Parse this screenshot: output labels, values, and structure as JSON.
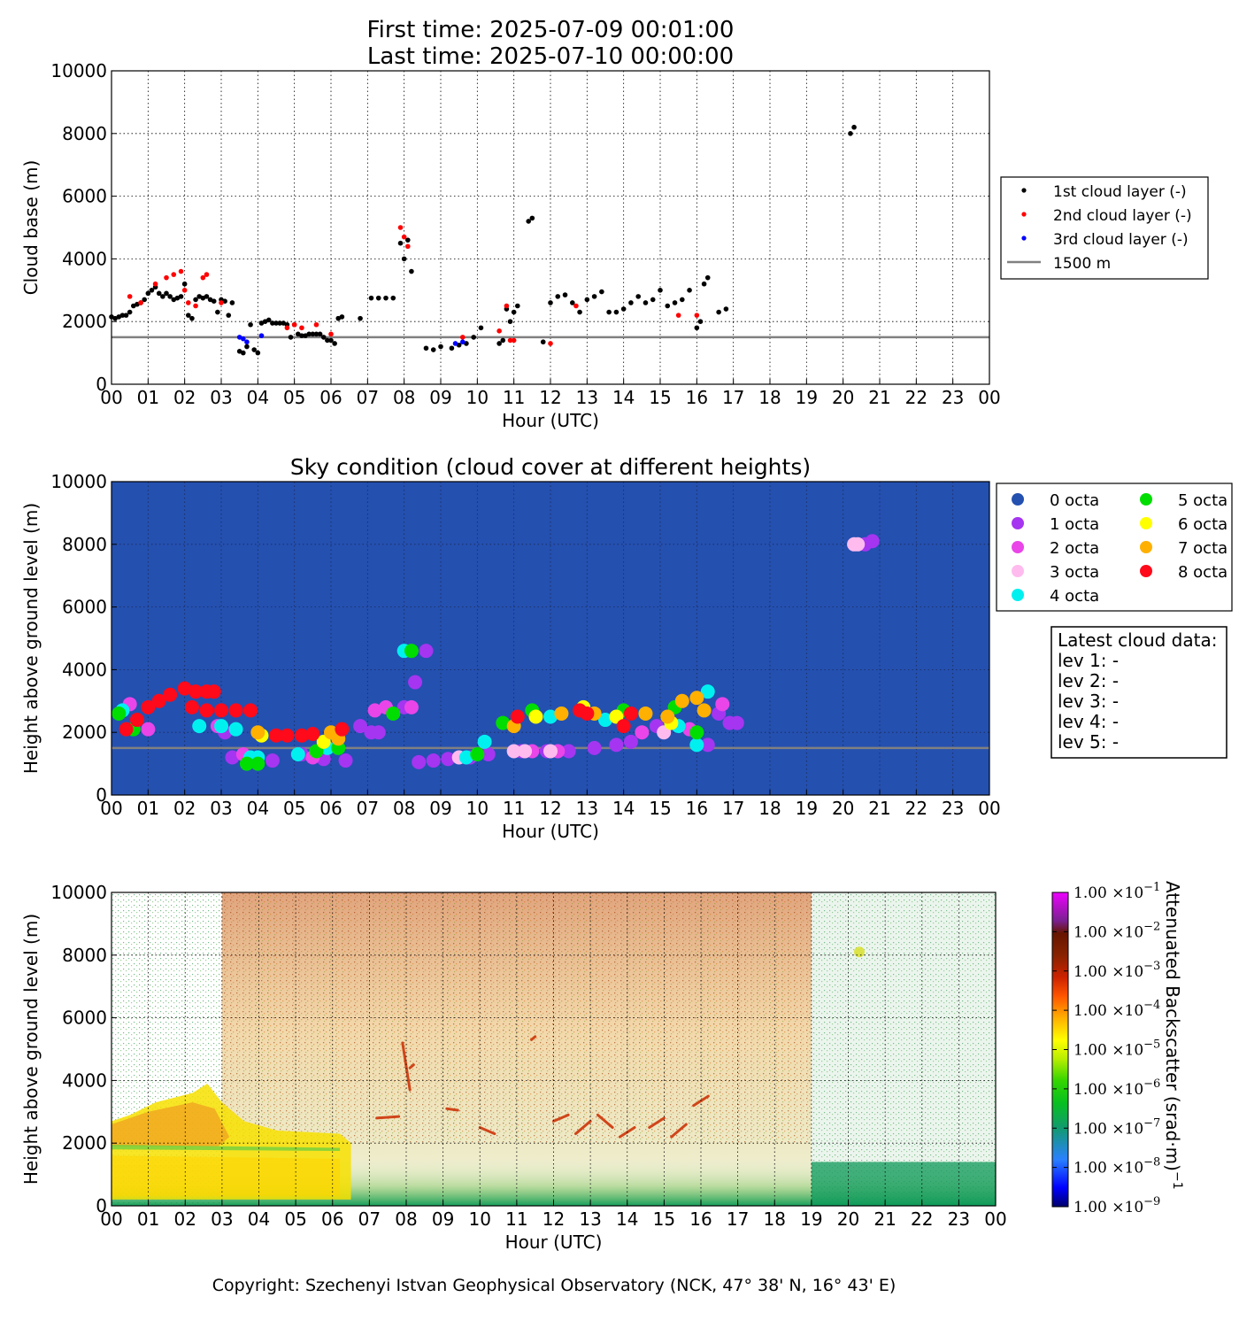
{
  "header": {
    "line1": "First time: 2025-07-09 00:01:00",
    "line2": "Last time: 2025-07-10 00:00:00"
  },
  "footer": {
    "copyright": "Copyright: Szechenyi Istvan Geophysical Observatory (NCK, 47° 38' N, 16° 43' E)"
  },
  "chart_data": [
    {
      "type": "scatter",
      "title": "",
      "xlabel": "Hour (UTC)",
      "ylabel": "Cloud base (m)",
      "xlim": [
        0,
        24
      ],
      "ylim": [
        0,
        10000
      ],
      "xticks": [
        "00",
        "01",
        "02",
        "03",
        "04",
        "05",
        "06",
        "07",
        "08",
        "09",
        "10",
        "11",
        "12",
        "13",
        "14",
        "15",
        "16",
        "17",
        "18",
        "19",
        "20",
        "21",
        "22",
        "23",
        "00"
      ],
      "yticks": [
        0,
        2000,
        4000,
        6000,
        8000,
        10000
      ],
      "grid": true,
      "legend_position": "right",
      "reference_line": {
        "label": "1500 m",
        "y": 1500,
        "color": "#808080"
      },
      "series": [
        {
          "name": "1st cloud layer (-)",
          "color": "#000000",
          "x": [
            0.0,
            0.1,
            0.2,
            0.3,
            0.4,
            0.5,
            0.6,
            0.7,
            0.8,
            0.9,
            1.0,
            1.1,
            1.2,
            1.3,
            1.4,
            1.5,
            1.6,
            1.7,
            1.8,
            1.9,
            2.0,
            2.1,
            2.2,
            2.3,
            2.4,
            2.5,
            2.6,
            2.7,
            2.8,
            2.9,
            3.0,
            3.1,
            3.2,
            3.3,
            3.5,
            3.6,
            3.7,
            3.8,
            3.9,
            4.0,
            4.1,
            4.2,
            4.3,
            4.4,
            4.5,
            4.6,
            4.7,
            4.8,
            4.9,
            5.0,
            5.1,
            5.2,
            5.3,
            5.4,
            5.5,
            5.6,
            5.7,
            5.8,
            5.9,
            6.0,
            6.1,
            6.2,
            6.3,
            6.8,
            7.1,
            7.3,
            7.5,
            7.7,
            7.9,
            8.0,
            8.1,
            8.2,
            8.6,
            8.8,
            9.0,
            9.3,
            9.5,
            9.7,
            9.9,
            10.1,
            10.6,
            10.7,
            10.8,
            10.9,
            11.0,
            11.1,
            11.4,
            11.5,
            11.8,
            12.0,
            12.2,
            12.4,
            12.6,
            12.8,
            13.0,
            13.2,
            13.4,
            13.6,
            13.8,
            14.0,
            14.2,
            14.4,
            14.6,
            14.8,
            15.0,
            15.2,
            15.4,
            15.6,
            15.8,
            16.0,
            16.1,
            16.2,
            16.3,
            16.6,
            16.8,
            20.2,
            20.3
          ],
          "y": [
            2150,
            2100,
            2150,
            2200,
            2200,
            2300,
            2500,
            2550,
            2600,
            2700,
            2900,
            3000,
            3100,
            2900,
            2800,
            2900,
            2800,
            2700,
            2750,
            2800,
            3200,
            2200,
            2100,
            2700,
            2800,
            2750,
            2800,
            2700,
            2650,
            2300,
            2700,
            2650,
            2200,
            2600,
            1050,
            1000,
            1200,
            1900,
            1100,
            1000,
            1950,
            2000,
            2050,
            1950,
            1950,
            1950,
            1950,
            1900,
            1500,
            1900,
            1600,
            1550,
            1550,
            1600,
            1600,
            1600,
            1600,
            1500,
            1400,
            1400,
            1300,
            2100,
            2150,
            2100,
            2750,
            2750,
            2750,
            2750,
            4500,
            4000,
            4600,
            3600,
            1150,
            1100,
            1200,
            1150,
            1250,
            1300,
            1500,
            1800,
            1300,
            1400,
            2400,
            2000,
            2300,
            2500,
            5200,
            5300,
            1350,
            2600,
            2800,
            2850,
            2600,
            2300,
            2700,
            2800,
            2950,
            2300,
            2300,
            2400,
            2600,
            2800,
            2600,
            2700,
            3000,
            2500,
            2600,
            2700,
            3000,
            1800,
            2000,
            3200,
            3400,
            2300,
            2400,
            8000,
            8200
          ]
        },
        {
          "name": "2nd cloud layer (-)",
          "color": "#ff0000",
          "x": [
            0.5,
            0.8,
            1.2,
            1.5,
            1.7,
            1.9,
            2.0,
            2.1,
            2.3,
            2.5,
            2.6,
            3.0,
            4.8,
            5.0,
            5.2,
            5.6,
            6.0,
            7.9,
            8.0,
            8.1,
            9.6,
            10.6,
            10.8,
            10.9,
            11.0,
            12.0,
            12.7,
            15.5,
            16.0
          ],
          "y": [
            2800,
            2600,
            3200,
            3400,
            3500,
            3600,
            3000,
            2600,
            2500,
            3400,
            3500,
            2600,
            1800,
            1900,
            1800,
            1900,
            1600,
            5000,
            4700,
            4400,
            1500,
            1700,
            2500,
            1400,
            1400,
            1300,
            2500,
            2200,
            2200
          ]
        },
        {
          "name": "3rd cloud layer (-)",
          "color": "#0000ff",
          "x": [
            3.5,
            3.6,
            3.7,
            4.1,
            9.4,
            9.6
          ],
          "y": [
            1500,
            1450,
            1350,
            1550,
            1300,
            1350
          ]
        }
      ]
    },
    {
      "type": "scatter",
      "title": "Sky condition (cloud cover at different heights)",
      "xlabel": "Hour (UTC)",
      "ylabel": "Height above ground level (m)",
      "xlim": [
        0,
        24
      ],
      "ylim": [
        0,
        10000
      ],
      "xticks": [
        "00",
        "01",
        "02",
        "03",
        "04",
        "05",
        "06",
        "07",
        "08",
        "09",
        "10",
        "11",
        "12",
        "13",
        "14",
        "15",
        "16",
        "17",
        "18",
        "19",
        "20",
        "21",
        "22",
        "23",
        "00"
      ],
      "yticks": [
        0,
        2000,
        4000,
        6000,
        8000,
        10000
      ],
      "grid": true,
      "background_color": "#2450b0",
      "legend_position": "right",
      "reference_line": {
        "y": 1500,
        "color": "#808080"
      },
      "series": [
        {
          "name": "0 octa",
          "color": "#2450b0",
          "points": []
        },
        {
          "name": "1 octa",
          "color": "#a535f0",
          "points": [
            [
              3.1,
              2000
            ],
            [
              3.3,
              1200
            ],
            [
              4.4,
              1100
            ],
            [
              5.2,
              1300
            ],
            [
              5.8,
              1150
            ],
            [
              6.4,
              1100
            ],
            [
              6.8,
              2200
            ],
            [
              7.1,
              2000
            ],
            [
              7.3,
              2000
            ],
            [
              8.0,
              2800
            ],
            [
              8.3,
              3600
            ],
            [
              8.6,
              4600
            ],
            [
              8.4,
              1050
            ],
            [
              8.8,
              1100
            ],
            [
              9.2,
              1150
            ],
            [
              9.8,
              1200
            ],
            [
              10.3,
              1300
            ],
            [
              11.2,
              1400
            ],
            [
              11.9,
              1400
            ],
            [
              12.5,
              1400
            ],
            [
              13.2,
              1500
            ],
            [
              13.8,
              1600
            ],
            [
              14.2,
              1700
            ],
            [
              14.9,
              2200
            ],
            [
              16.3,
              1600
            ],
            [
              16.6,
              2600
            ],
            [
              16.9,
              2300
            ],
            [
              17.1,
              2300
            ],
            [
              20.6,
              8000
            ],
            [
              20.8,
              8100
            ]
          ]
        },
        {
          "name": "2 octa",
          "color": "#e945e8",
          "points": [
            [
              0.5,
              2900
            ],
            [
              1.0,
              2100
            ],
            [
              2.9,
              2200
            ],
            [
              3.6,
              1300
            ],
            [
              5.5,
              1200
            ],
            [
              7.2,
              2700
            ],
            [
              7.5,
              2800
            ],
            [
              8.2,
              2800
            ],
            [
              11.5,
              1400
            ],
            [
              12.2,
              1400
            ],
            [
              14.5,
              2000
            ],
            [
              15.8,
              2100
            ],
            [
              16.7,
              2900
            ]
          ]
        },
        {
          "name": "3 octa",
          "color": "#ffbbee",
          "points": [
            [
              9.5,
              1200
            ],
            [
              11.0,
              1400
            ],
            [
              11.3,
              1400
            ],
            [
              12.0,
              1400
            ],
            [
              15.1,
              2000
            ],
            [
              20.3,
              8000
            ],
            [
              20.4,
              8000
            ]
          ]
        },
        {
          "name": "4 octa",
          "color": "#00f0f0",
          "points": [
            [
              0.3,
              2700
            ],
            [
              2.4,
              2200
            ],
            [
              3.0,
              2200
            ],
            [
              3.4,
              2100
            ],
            [
              3.8,
              1200
            ],
            [
              4.0,
              1200
            ],
            [
              5.1,
              1300
            ],
            [
              5.9,
              1500
            ],
            [
              8.0,
              4600
            ],
            [
              9.7,
              1200
            ],
            [
              10.2,
              1700
            ],
            [
              12.0,
              2500
            ],
            [
              13.5,
              2400
            ],
            [
              15.5,
              2200
            ],
            [
              16.0,
              1600
            ],
            [
              16.3,
              3300
            ]
          ]
        },
        {
          "name": "5 octa",
          "color": "#00dd00",
          "points": [
            [
              0.2,
              2600
            ],
            [
              0.6,
              2100
            ],
            [
              3.7,
              1000
            ],
            [
              4.0,
              1000
            ],
            [
              5.6,
              1400
            ],
            [
              6.2,
              1500
            ],
            [
              7.7,
              2600
            ],
            [
              8.2,
              4600
            ],
            [
              10.0,
              1300
            ],
            [
              10.7,
              2300
            ],
            [
              11.5,
              2700
            ],
            [
              14.0,
              2700
            ],
            [
              15.4,
              2800
            ],
            [
              16.0,
              2000
            ]
          ]
        },
        {
          "name": "6 octa",
          "color": "#ffff00",
          "points": [
            [
              4.1,
              1900
            ],
            [
              5.8,
              1700
            ],
            [
              11.6,
              2500
            ],
            [
              12.9,
              2800
            ],
            [
              13.8,
              2500
            ],
            [
              15.3,
              2300
            ]
          ]
        },
        {
          "name": "7 octa",
          "color": "#ffb000",
          "points": [
            [
              4.0,
              2000
            ],
            [
              6.0,
              2000
            ],
            [
              6.2,
              1800
            ],
            [
              11.0,
              2200
            ],
            [
              12.3,
              2600
            ],
            [
              13.2,
              2600
            ],
            [
              14.6,
              2600
            ],
            [
              15.2,
              2500
            ],
            [
              15.6,
              3000
            ],
            [
              16.0,
              3100
            ],
            [
              16.2,
              2700
            ]
          ]
        },
        {
          "name": "8 octa",
          "color": "#ff0a1a",
          "points": [
            [
              0.4,
              2100
            ],
            [
              0.7,
              2400
            ],
            [
              1.0,
              2800
            ],
            [
              1.3,
              3000
            ],
            [
              1.6,
              3200
            ],
            [
              2.0,
              3400
            ],
            [
              2.3,
              3300
            ],
            [
              2.6,
              3300
            ],
            [
              2.8,
              3300
            ],
            [
              2.2,
              2800
            ],
            [
              2.6,
              2700
            ],
            [
              3.0,
              2700
            ],
            [
              3.4,
              2700
            ],
            [
              3.8,
              2700
            ],
            [
              4.5,
              1900
            ],
            [
              4.8,
              1900
            ],
            [
              5.2,
              1900
            ],
            [
              5.5,
              1950
            ],
            [
              6.3,
              2100
            ],
            [
              11.1,
              2500
            ],
            [
              12.8,
              2700
            ],
            [
              13.0,
              2600
            ],
            [
              14.0,
              2200
            ],
            [
              14.2,
              2600
            ]
          ]
        }
      ],
      "info_box": {
        "title": "Latest cloud data:",
        "lines": [
          "lev 1: -",
          "lev 2: -",
          "lev 3: -",
          "lev 4: -",
          "lev 5: -"
        ]
      }
    },
    {
      "type": "heatmap",
      "title": "",
      "xlabel": "Hour (UTC)",
      "ylabel": "Height above ground level (m)",
      "xlim": [
        0,
        24
      ],
      "ylim": [
        0,
        10000
      ],
      "xticks": [
        "00",
        "01",
        "02",
        "03",
        "04",
        "05",
        "06",
        "07",
        "08",
        "09",
        "10",
        "11",
        "12",
        "13",
        "14",
        "15",
        "16",
        "17",
        "18",
        "19",
        "20",
        "21",
        "22",
        "23",
        "00"
      ],
      "yticks": [
        0,
        2000,
        4000,
        6000,
        8000,
        10000
      ],
      "grid": true,
      "colorbar": {
        "label": "Attenuated Backscatter (srad·m)",
        "label_exponent": "−1",
        "scale": "log",
        "tick_mantissa": "1.00",
        "tick_base": "×10",
        "tick_exponents": [
          "−9",
          "−8",
          "−7",
          "−6",
          "−5",
          "−4",
          "−3",
          "−2",
          "−1"
        ],
        "range": [
          1e-09,
          0.1
        ]
      }
    }
  ]
}
